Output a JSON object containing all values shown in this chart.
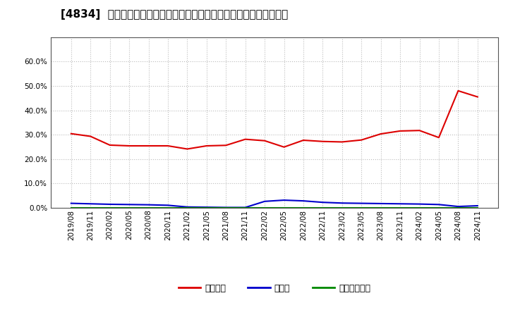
{
  "title": "[4834]  自己資本、のれん、繰延税金資産の総資産に対する比率の推移",
  "dates": [
    "2019/08",
    "2019/11",
    "2020/02",
    "2020/05",
    "2020/08",
    "2020/11",
    "2021/02",
    "2021/05",
    "2021/08",
    "2021/11",
    "2022/02",
    "2022/05",
    "2022/08",
    "2022/11",
    "2023/02",
    "2023/05",
    "2023/08",
    "2023/11",
    "2024/02",
    "2024/05",
    "2024/08",
    "2024/11"
  ],
  "equity": [
    0.304,
    0.293,
    0.257,
    0.254,
    0.254,
    0.254,
    0.241,
    0.254,
    0.256,
    0.281,
    0.275,
    0.249,
    0.277,
    0.272,
    0.27,
    0.278,
    0.303,
    0.315,
    0.317,
    0.288,
    0.48,
    0.455
  ],
  "noren": [
    0.018,
    0.016,
    0.014,
    0.013,
    0.012,
    0.01,
    0.003,
    0.002,
    0.001,
    0.001,
    0.026,
    0.031,
    0.028,
    0.022,
    0.019,
    0.018,
    0.017,
    0.016,
    0.015,
    0.013,
    0.005,
    0.008
  ],
  "deferred_tax": [
    0.0,
    0.0,
    0.0,
    0.0,
    0.0,
    0.0,
    0.0,
    0.0,
    0.0,
    0.0,
    0.0,
    0.0,
    0.0,
    0.0,
    0.0,
    0.0,
    0.0,
    0.0,
    0.0,
    0.0,
    0.0,
    0.0
  ],
  "equity_color": "#dd0000",
  "noren_color": "#0000cc",
  "deferred_tax_color": "#008800",
  "background_color": "#ffffff",
  "plot_bg_color": "#ffffff",
  "grid_color": "#bbbbbb",
  "ylim": [
    0.0,
    0.7
  ],
  "yticks": [
    0.0,
    0.1,
    0.2,
    0.3,
    0.4,
    0.5,
    0.6
  ],
  "legend_labels": [
    "自己資本",
    "のれん",
    "繰延税金資産"
  ],
  "title_fontsize": 11,
  "tick_fontsize": 7.5,
  "legend_fontsize": 9
}
